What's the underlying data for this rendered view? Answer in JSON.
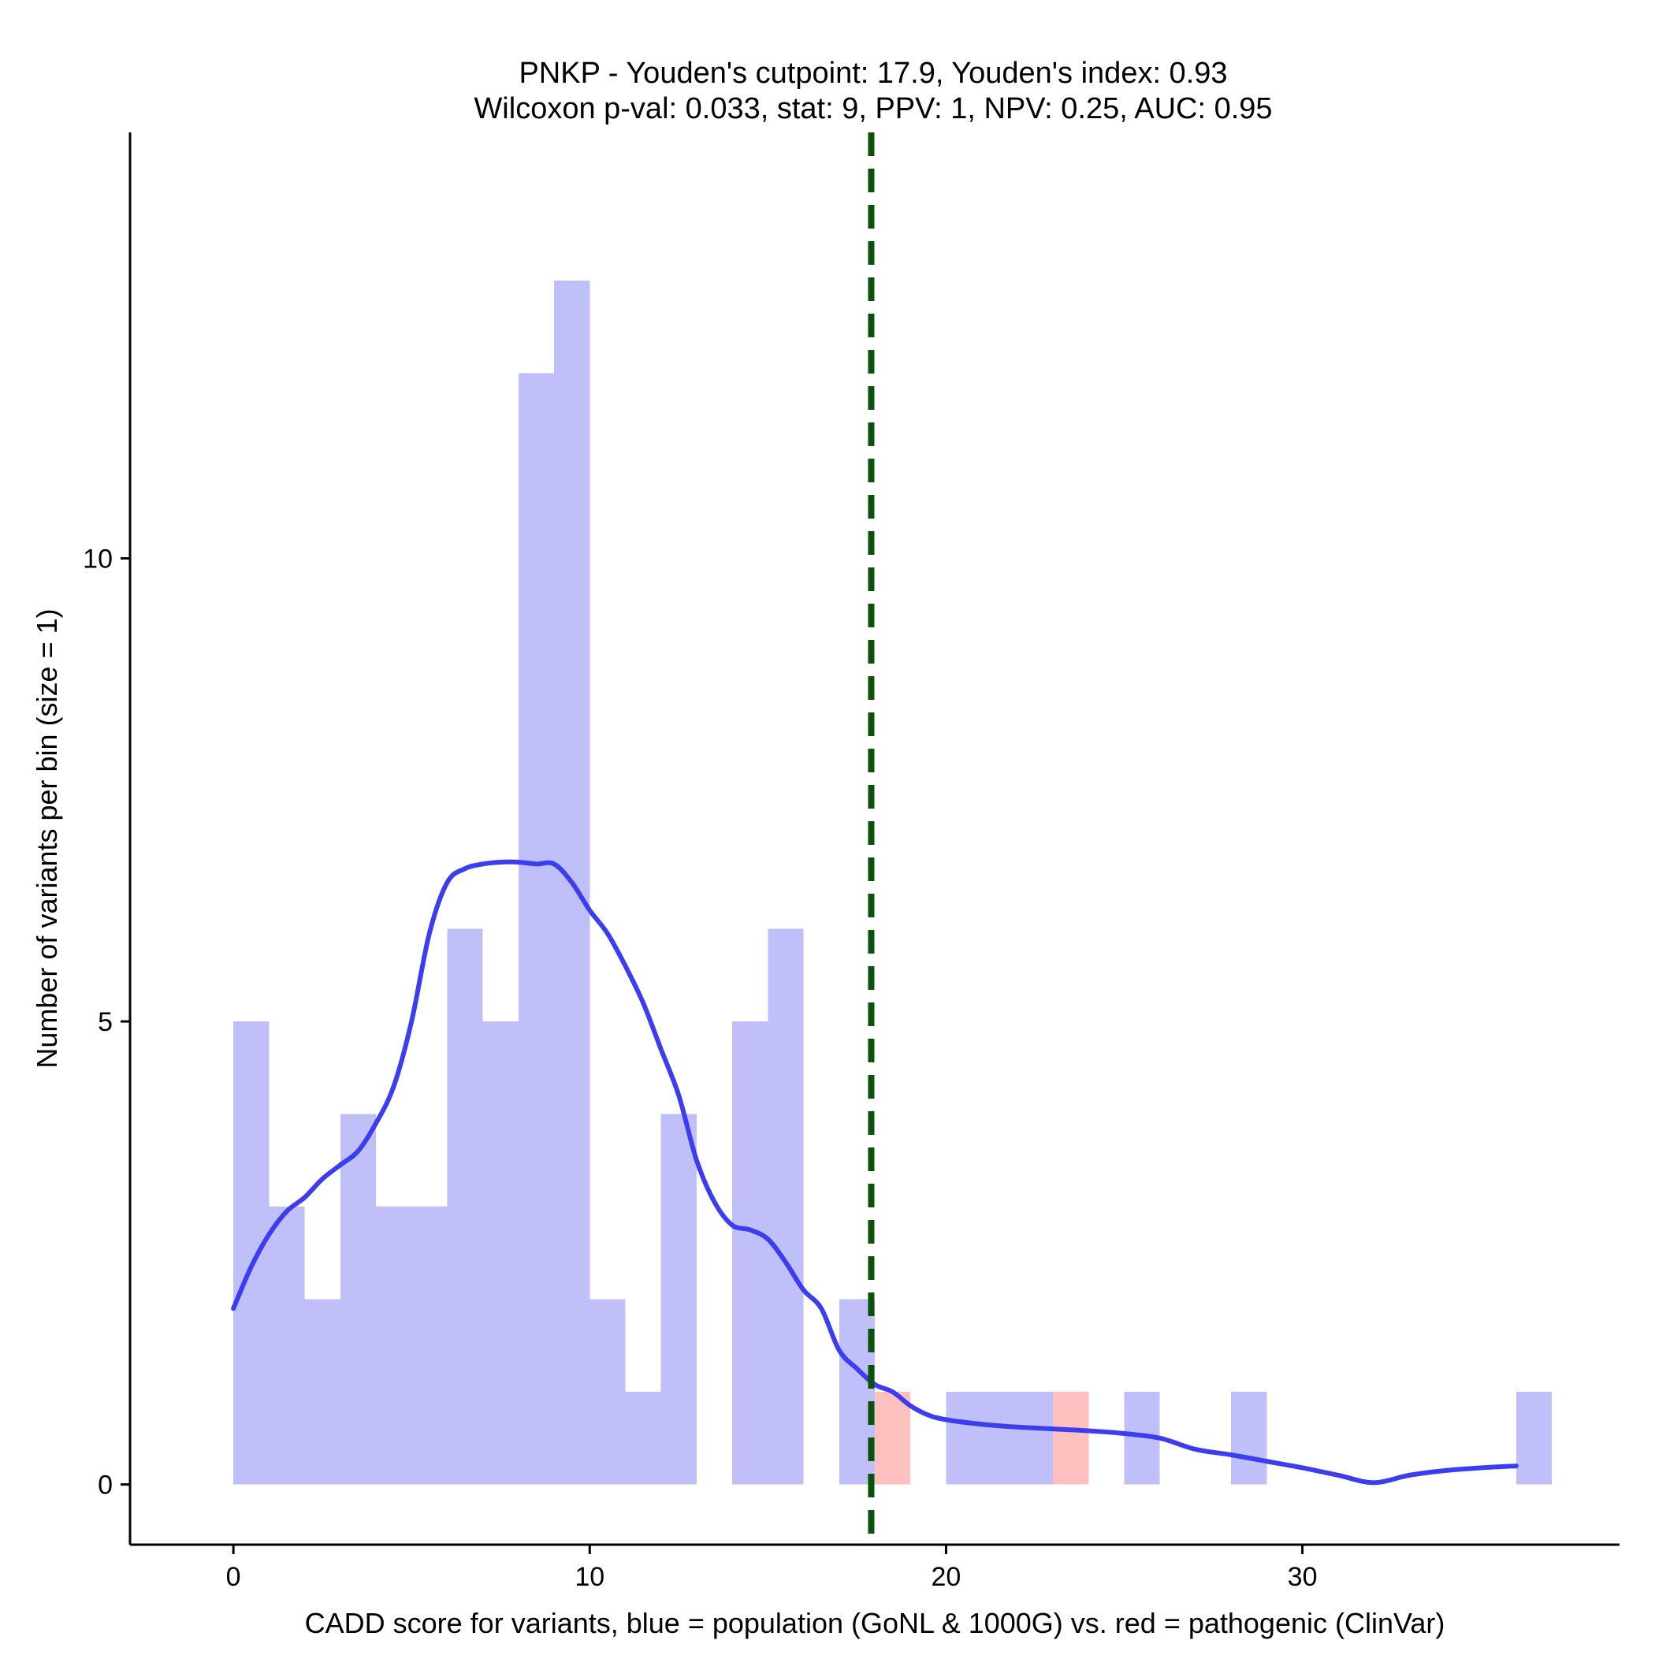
{
  "chart_data": {
    "type": "bar",
    "title_line1": "PNKP - Youden's cutpoint: 17.9, Youden's index: 0.93",
    "title_line2": "Wilcoxon p-val: 0.033, stat: 9, PPV: 1, NPV: 0.25, AUC: 0.95",
    "xlabel": "CADD score for variants, blue = population (GoNL & 1000G) vs. red = pathogenic (ClinVar)",
    "ylabel": "Number of variants per bin (size = 1)",
    "xlim": [
      -2.9,
      38.9
    ],
    "ylim": [
      -0.65,
      14.6
    ],
    "x_ticks": [
      0,
      10,
      20,
      30
    ],
    "x_tick_labels": [
      "0",
      "10",
      "20",
      "30"
    ],
    "y_ticks": [
      0,
      5,
      10
    ],
    "y_tick_labels": [
      "0",
      "5",
      "10"
    ],
    "bin_width": 1,
    "cutpoint": 17.9,
    "colors": {
      "population": "#bfbffa",
      "pathogenic": "#ffc0c0",
      "density": "#3c3cf0",
      "cutpoint": "#0a520a"
    },
    "series": [
      {
        "name": "population",
        "bin_starts": [
          0,
          1,
          2,
          3,
          4,
          5,
          6,
          7,
          8,
          9,
          10,
          11,
          12,
          13,
          14,
          15,
          16,
          17,
          18,
          19,
          20,
          21,
          22,
          23,
          24,
          25,
          26,
          27,
          28,
          29,
          30,
          31,
          32,
          33,
          34,
          35,
          36
        ],
        "values": [
          5,
          3,
          2,
          4,
          3,
          3,
          6,
          5,
          12,
          13,
          2,
          1,
          4,
          0,
          5,
          6,
          0,
          2,
          0,
          0,
          1,
          1,
          1,
          1,
          0,
          1,
          0,
          0,
          1,
          0,
          0,
          0,
          0,
          0,
          0,
          0,
          1
        ]
      },
      {
        "name": "pathogenic",
        "bin_starts": [
          18,
          23
        ],
        "values": [
          1,
          1
        ]
      }
    ],
    "density_curve": {
      "x": [
        0,
        0.5,
        1,
        1.5,
        2,
        2.5,
        3,
        3.5,
        4,
        4.5,
        5,
        5.5,
        6,
        6.5,
        7,
        7.5,
        8,
        8.5,
        9,
        9.5,
        10,
        10.5,
        11,
        11.5,
        12,
        12.5,
        13,
        13.5,
        14,
        14.5,
        15,
        15.5,
        16,
        16.5,
        17,
        17.5,
        18,
        18.5,
        19,
        19.5,
        20,
        21,
        22,
        23,
        24,
        25,
        26,
        27,
        28,
        29,
        30,
        31,
        32,
        33,
        34,
        35,
        36
      ],
      "y": [
        1.9,
        2.35,
        2.7,
        2.95,
        3.1,
        3.3,
        3.45,
        3.6,
        3.9,
        4.3,
        5.0,
        5.95,
        6.5,
        6.65,
        6.7,
        6.72,
        6.72,
        6.7,
        6.7,
        6.5,
        6.2,
        5.95,
        5.6,
        5.2,
        4.7,
        4.2,
        3.5,
        3.05,
        2.8,
        2.75,
        2.65,
        2.4,
        2.1,
        1.9,
        1.45,
        1.25,
        1.08,
        1.0,
        0.85,
        0.75,
        0.7,
        0.65,
        0.62,
        0.6,
        0.58,
        0.55,
        0.5,
        0.38,
        0.32,
        0.25,
        0.18,
        0.1,
        0.02,
        0.1,
        0.15,
        0.18,
        0.2
      ]
    }
  }
}
